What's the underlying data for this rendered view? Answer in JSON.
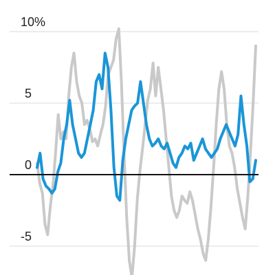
{
  "chart_data": {
    "type": "line",
    "title": "",
    "xlabel": "",
    "ylabel": "",
    "ylim": [
      -7.2,
      10.2
    ],
    "grid": true,
    "yticks": [
      {
        "value": 10,
        "label": "10%"
      },
      {
        "value": 5,
        "label": "5"
      },
      {
        "value": 0,
        "label": "0"
      },
      {
        "value": -5,
        "label": "-5"
      }
    ],
    "colors": {
      "series_a": "#1a95d8",
      "series_b": "#c9c9c9",
      "zero_line": "#111111",
      "grid": "#d9d9d9"
    },
    "series": [
      {
        "values": [
          0.8,
          -0.6,
          -1.3,
          -3.5,
          -4.2,
          -2.2,
          -0.8,
          1.5,
          4.2,
          2.5,
          3.0,
          2.5,
          5.5,
          7.5,
          8.5,
          6.5,
          5.5,
          5.0,
          3.5,
          3.8,
          3.2,
          2.3,
          2.5,
          2.0,
          2.8,
          3.5,
          4.8,
          7.0,
          7.5,
          8.0,
          9.5,
          10.2,
          6.5,
          1.5,
          -3.0,
          -6.0,
          -7.2,
          -5.0,
          -1.8,
          0.2,
          1.8,
          3.5,
          5.2,
          6.0,
          7.8,
          5.5,
          7.5,
          6.0,
          4.5,
          2.5,
          0.5,
          -1.5,
          -2.5,
          -3.0,
          -2.5,
          -1.5,
          -1.8,
          -2.0,
          -1.2,
          -1.8,
          -2.8,
          -3.8,
          -4.5,
          -5.5,
          -6.0,
          -4.5,
          -2.2,
          0.5,
          3.5,
          6.0,
          7.2,
          6.0,
          3.5,
          2.0,
          1.5,
          0.5,
          -1.0,
          -2.0,
          -3.0,
          -3.8,
          -1.5,
          1.5,
          5.0,
          9.0
        ]
      },
      {
        "values": [
          0.5,
          1.5,
          -0.3,
          -0.8,
          -1.0,
          -1.3,
          -1.0,
          0.2,
          0.8,
          2.5,
          3.5,
          5.2,
          3.5,
          2.5,
          1.5,
          1.2,
          1.5,
          2.5,
          3.5,
          4.5,
          6.5,
          7.0,
          6.0,
          8.5,
          7.5,
          4.5,
          0.5,
          -1.5,
          -1.8,
          1.0,
          2.5,
          3.5,
          4.5,
          4.8,
          5.0,
          6.5,
          5.0,
          3.5,
          2.5,
          2.0,
          2.2,
          2.5,
          2.0,
          1.8,
          2.2,
          1.5,
          0.8,
          0.5,
          1.2,
          1.5,
          2.0,
          1.8,
          2.2,
          1.0,
          1.5,
          2.0,
          2.5,
          1.8,
          1.5,
          1.2,
          1.5,
          1.8,
          2.5,
          3.0,
          3.5,
          3.0,
          2.5,
          2.0,
          2.8,
          5.5,
          3.5,
          2.0,
          -0.5,
          -0.3,
          1.0
        ]
      }
    ]
  }
}
